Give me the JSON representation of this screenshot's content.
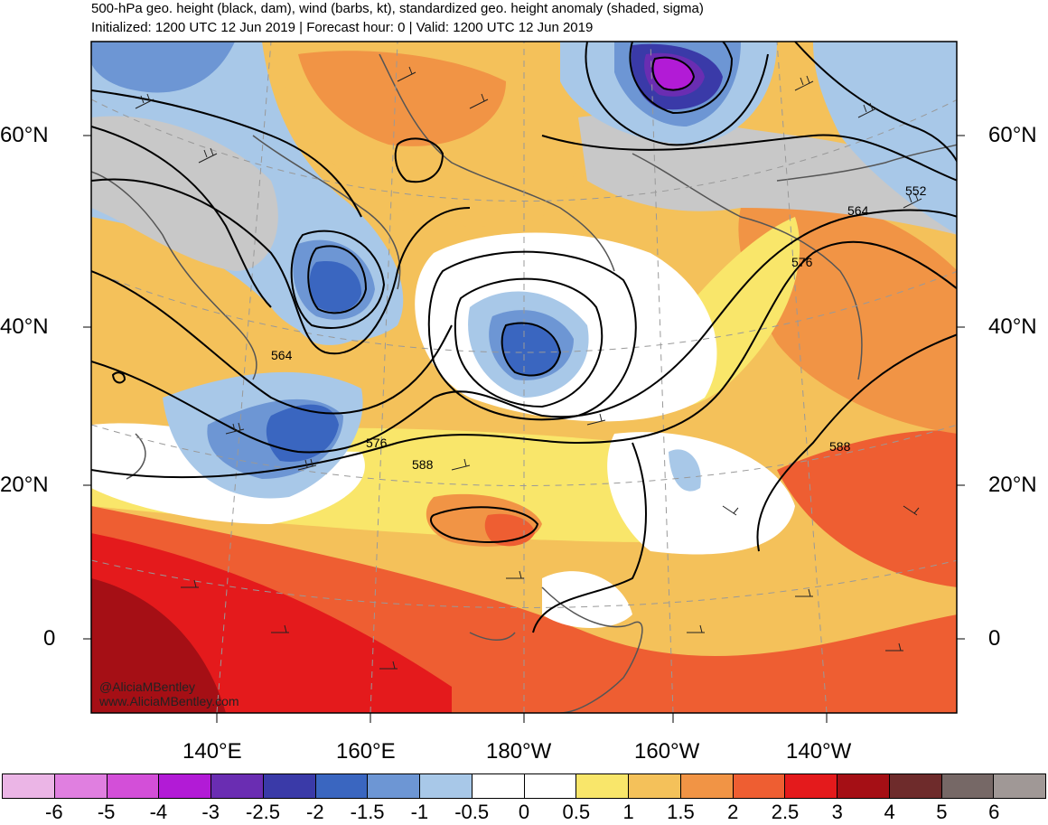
{
  "title": "500-hPa geo. height (black, dam), wind (barbs, kt), standardized geo. height anomaly (shaded, sigma)",
  "subtitle": "Initialized: 1200 UTC 12 Jun 2019 | Forecast hour: 0 | Valid: 1200 UTC 12 Jun 2019",
  "lat_labels_left": [
    "60°N",
    "40°N",
    "20°N",
    "0"
  ],
  "lat_labels_right": [
    "60°N",
    "40°N",
    "20°N",
    "0"
  ],
  "lon_labels": [
    "140°E",
    "160°E",
    "180°W",
    "160°W",
    "140°W"
  ],
  "contour_labels": [
    "552",
    "564",
    "564",
    "576",
    "576",
    "588",
    "588"
  ],
  "credit": [
    "@AliciaMBentley",
    "www.AliciaMBentley.com"
  ],
  "colorbar": {
    "labels": [
      "-6",
      "-5",
      "-4",
      "-3",
      "-2.5",
      "-2",
      "-1.5",
      "-1",
      "-0.5",
      "0",
      "0.5",
      "1",
      "1.5",
      "2",
      "2.5",
      "3",
      "4",
      "5",
      "6"
    ],
    "colors": [
      "#ebb5e6",
      "#e07fe0",
      "#d34fd8",
      "#b21bd6",
      "#6a2db2",
      "#3a3aa8",
      "#3a66c0",
      "#6d96d4",
      "#a8c8e8",
      "#ffffff",
      "#ffffff",
      "#f9e66a",
      "#f4c15a",
      "#f19445",
      "#ee5e32",
      "#e41a1c",
      "#a50f15",
      "#6e2b2b",
      "#766866",
      "#a09896"
    ]
  },
  "colors": {
    "land": "#555555",
    "contour": "#000000",
    "graticule": "#888888"
  }
}
